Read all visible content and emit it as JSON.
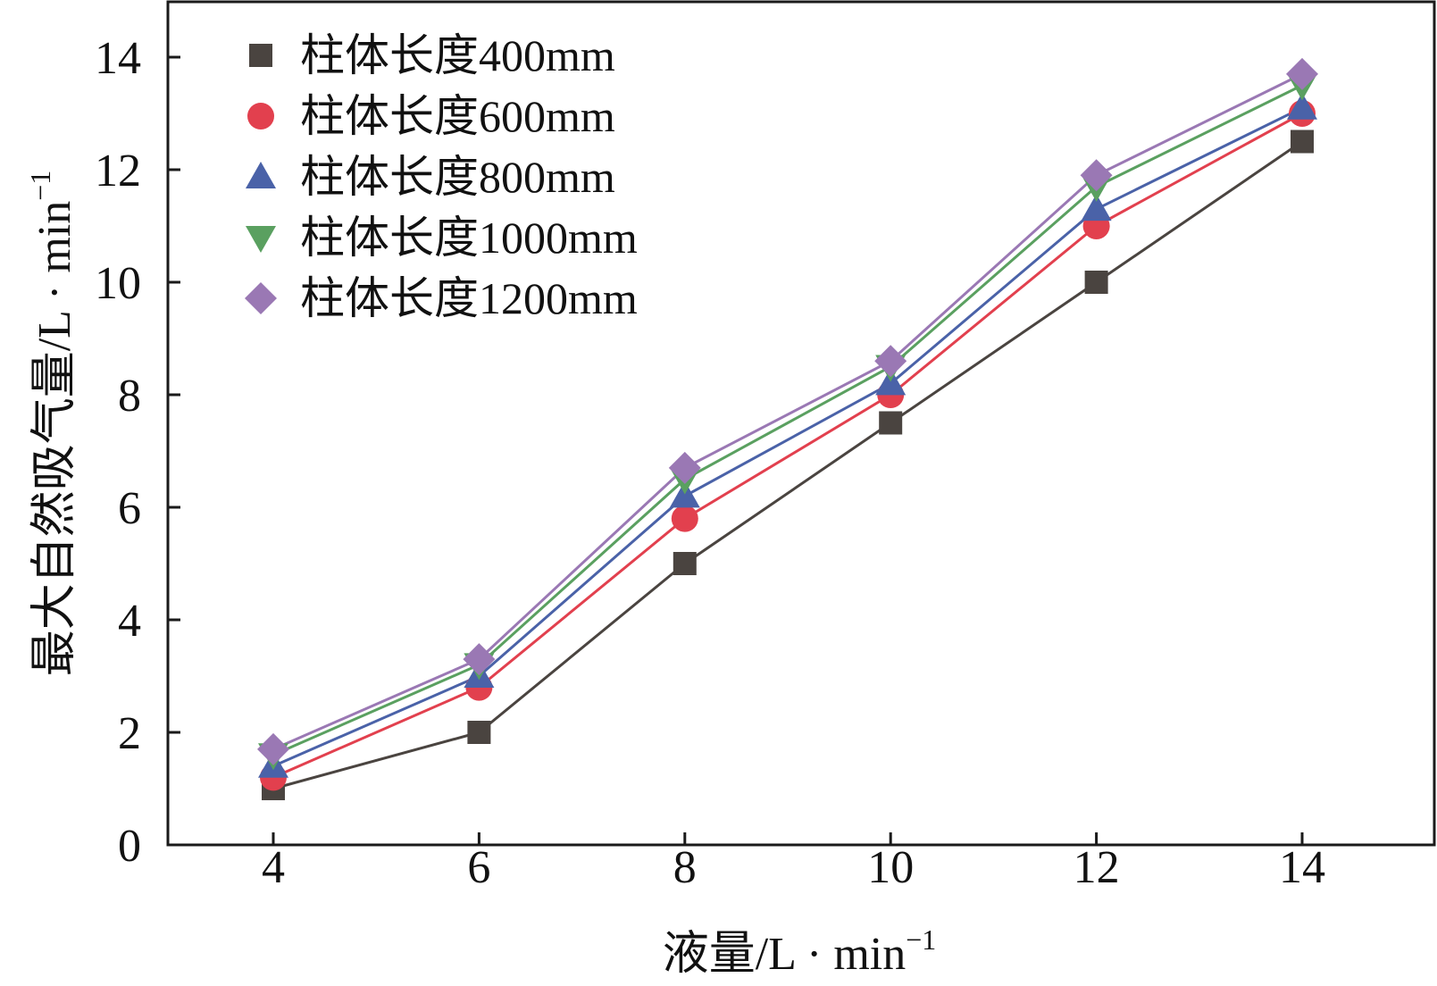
{
  "chart_data": {
    "type": "line",
    "title": "",
    "xlabel": "液量/L · min",
    "xlabel_sup": "−1",
    "ylabel": "最大自然吸气量/L · min",
    "ylabel_sup": "−1",
    "xlim": [
      3,
      15
    ],
    "ylim": [
      0,
      15
    ],
    "xticks": [
      4,
      6,
      8,
      10,
      12,
      14
    ],
    "yticks": [
      0,
      2,
      4,
      6,
      8,
      10,
      12,
      14
    ],
    "x": [
      4,
      6,
      8,
      10,
      12,
      14
    ],
    "legend_position": "top-left",
    "grid": false,
    "series": [
      {
        "name": "柱体长度400mm",
        "marker": "square",
        "color": "#4a4440",
        "values": [
          1.0,
          2.0,
          5.0,
          7.5,
          10.0,
          12.5
        ]
      },
      {
        "name": "柱体长度600mm",
        "marker": "circle",
        "color": "#e2404e",
        "values": [
          1.2,
          2.8,
          5.8,
          8.0,
          11.0,
          13.0
        ]
      },
      {
        "name": "柱体长度800mm",
        "marker": "triangle-up",
        "color": "#4a62a8",
        "values": [
          1.4,
          3.0,
          6.2,
          8.2,
          11.3,
          13.1
        ]
      },
      {
        "name": "柱体长度1000mm",
        "marker": "triangle-down",
        "color": "#5aa060",
        "values": [
          1.6,
          3.2,
          6.5,
          8.5,
          11.7,
          13.5
        ]
      },
      {
        "name": "柱体长度1200mm",
        "marker": "diamond",
        "color": "#9a78b4",
        "values": [
          1.7,
          3.3,
          6.7,
          8.6,
          11.9,
          13.7
        ]
      }
    ]
  }
}
